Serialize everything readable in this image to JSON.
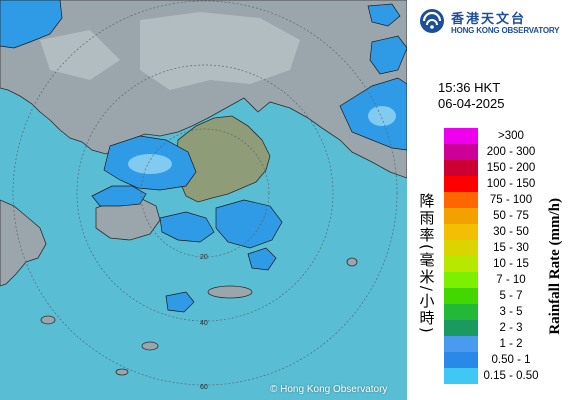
{
  "map": {
    "copyright": "© Hong Kong Observatory",
    "sea_color": "#4fb9cf",
    "land_color": "#9aa6ac",
    "rain_color": "#2f9be6",
    "light_rain_color": "#8ed4f0",
    "range_ring_values": [
      "20",
      "40",
      "60"
    ]
  },
  "header": {
    "logo_cn": "香港天文台",
    "logo_en": "HONG KONG OBSERVATORY",
    "brand_color": "#1c4e9b"
  },
  "timestamp": {
    "time": "15:36 HKT",
    "date": "06-04-2025"
  },
  "legend": {
    "title_cn": "降雨率(毫米/小時)",
    "title_en": "Rainfall Rate (mm/h)",
    "items": [
      {
        "label": ">300",
        "color": "#ee00ee"
      },
      {
        "label": "200 - 300",
        "color": "#cc0099"
      },
      {
        "label": "150 - 200",
        "color": "#cc0033"
      },
      {
        "label": "100 - 150",
        "color": "#ff0000"
      },
      {
        "label": "75 - 100",
        "color": "#ff6600"
      },
      {
        "label": "50 - 75",
        "color": "#f2a100"
      },
      {
        "label": "30 - 50",
        "color": "#f2c000"
      },
      {
        "label": "15 - 30",
        "color": "#dcd400"
      },
      {
        "label": "10 - 15",
        "color": "#b8e800"
      },
      {
        "label": "7 - 10",
        "color": "#7cf000"
      },
      {
        "label": "5 - 7",
        "color": "#44d600"
      },
      {
        "label": "3 - 5",
        "color": "#22b838"
      },
      {
        "label": "2 - 3",
        "color": "#1a9a5e"
      },
      {
        "label": "1 - 2",
        "color": "#4a9af0"
      },
      {
        "label": "0.50 - 1",
        "color": "#2a88e8"
      },
      {
        "label": "0.15 - 0.50",
        "color": "#40c8f5"
      }
    ]
  }
}
